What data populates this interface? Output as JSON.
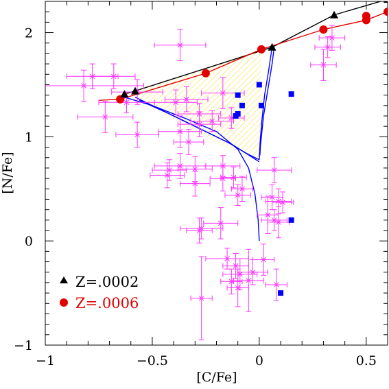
{
  "chart_data": {
    "type": "scatter",
    "xlabel": "[C/Fe]",
    "ylabel": "[N/Fe]",
    "xlim": [
      -1.0,
      0.6
    ],
    "ylim": [
      -1.0,
      2.3
    ],
    "x_ticks": [
      "−1",
      "−0.5",
      "0",
      "0.5"
    ],
    "x_tick_values": [
      -1.0,
      -0.5,
      0.0,
      0.5
    ],
    "y_ticks": [
      "−1",
      "0",
      "1",
      "2"
    ],
    "y_tick_values": [
      -1,
      0,
      1,
      2
    ],
    "grid": false,
    "legend_position": "bottom-left",
    "colors": {
      "z0002": "#000000",
      "z0006": "#e00000",
      "blue": "#0000ff",
      "data": "#ff33ff",
      "hatch": "#ffee44"
    },
    "series": [
      {
        "name": "Z=.0002",
        "marker": "triangle",
        "color": "#000000",
        "x": [
          -0.63,
          -0.58,
          0.06,
          0.35,
          0.6
        ],
        "y": [
          1.41,
          1.44,
          1.86,
          2.17,
          2.32
        ]
      },
      {
        "name": "Z=.0006",
        "marker": "circle",
        "color": "#e00000",
        "x": [
          -0.65,
          -0.25,
          0.01,
          0.3,
          0.5,
          0.5,
          0.6
        ],
        "y": [
          1.36,
          1.61,
          1.84,
          2.03,
          2.12,
          2.16,
          2.2
        ]
      },
      {
        "marker": "square",
        "color": "#0000ff",
        "x": [
          0.0,
          0.01,
          -0.1,
          -0.11,
          -0.08,
          -0.1,
          0.15,
          0.15,
          0.1
        ],
        "y": [
          1.5,
          1.3,
          1.4,
          1.2,
          1.3,
          1.22,
          1.41,
          0.2,
          -0.5
        ]
      },
      {
        "marker": "asterisk",
        "color": "#ff33ff",
        "points": [
          {
            "x": -0.82,
            "y": 1.49,
            "xerr": 0.28,
            "yerr": 0.15
          },
          {
            "x": -0.78,
            "y": 1.58,
            "xerr": 0.12,
            "yerr": 0.12
          },
          {
            "x": -0.72,
            "y": 1.19,
            "xerr": 0.13,
            "yerr": 0.15
          },
          {
            "x": -0.68,
            "y": 1.58,
            "xerr": 0.1,
            "yerr": 0.12
          },
          {
            "x": -0.62,
            "y": 1.33,
            "xerr": 0.13,
            "yerr": 0.1
          },
          {
            "x": -0.57,
            "y": 1.43,
            "xerr": 0.12,
            "yerr": 0.12
          },
          {
            "x": -0.57,
            "y": 1.02,
            "xerr": 0.1,
            "yerr": 0.12
          },
          {
            "x": -0.37,
            "y": 1.88,
            "xerr": 0.12,
            "yerr": 0.15
          },
          {
            "x": -0.39,
            "y": 1.33,
            "xerr": 0.1,
            "yerr": 0.12
          },
          {
            "x": -0.37,
            "y": 1.05,
            "xerr": 0.1,
            "yerr": 0.15
          },
          {
            "x": -0.34,
            "y": 1.36,
            "xerr": 0.1,
            "yerr": 0.12
          },
          {
            "x": -0.28,
            "y": 1.12,
            "xerr": 0.1,
            "yerr": 0.12
          },
          {
            "x": -0.33,
            "y": 0.95,
            "xerr": 0.07,
            "yerr": 0.12
          },
          {
            "x": -0.3,
            "y": 0.69,
            "xerr": 0.08,
            "yerr": 0.12
          },
          {
            "x": -0.37,
            "y": 0.72,
            "xerr": 0.12,
            "yerr": 0.12
          },
          {
            "x": -0.42,
            "y": 0.68,
            "xerr": 0.08,
            "yerr": 0.1
          },
          {
            "x": -0.43,
            "y": 0.63,
            "xerr": 0.08,
            "yerr": 0.12
          },
          {
            "x": -0.28,
            "y": 1.22,
            "xerr": 0.1,
            "yerr": 0.1
          },
          {
            "x": -0.22,
            "y": 1.15,
            "xerr": 0.1,
            "yerr": 0.1
          },
          {
            "x": -0.3,
            "y": 0.55,
            "xerr": 0.07,
            "yerr": 0.12
          },
          {
            "x": -0.27,
            "y": 0.12,
            "xerr": 0.1,
            "yerr": 0.1
          },
          {
            "x": -0.28,
            "y": 0.1,
            "xerr": 0.06,
            "yerr": 0.12
          },
          {
            "x": -0.17,
            "y": 1.42,
            "xerr": 0.1,
            "yerr": 0.15
          },
          {
            "x": -0.13,
            "y": 1.18,
            "xerr": 0.06,
            "yerr": 0.1
          },
          {
            "x": -0.17,
            "y": 0.72,
            "xerr": 0.08,
            "yerr": 0.1
          },
          {
            "x": -0.17,
            "y": 0.6,
            "xerr": 0.06,
            "yerr": 0.12
          },
          {
            "x": -0.12,
            "y": 0.61,
            "xerr": 0.06,
            "yerr": 0.1
          },
          {
            "x": -0.1,
            "y": 0.44,
            "xerr": 0.06,
            "yerr": 0.1
          },
          {
            "x": -0.08,
            "y": 0.5,
            "xerr": 0.05,
            "yerr": 0.12
          },
          {
            "x": -0.18,
            "y": 0.17,
            "xerr": 0.08,
            "yerr": 0.15
          },
          {
            "x": -0.27,
            "y": -0.55,
            "xerr": 0.05,
            "yerr": 0.4
          },
          {
            "x": -0.15,
            "y": -0.17,
            "xerr": 0.1,
            "yerr": 0.1
          },
          {
            "x": -0.11,
            "y": -0.24,
            "xerr": 0.06,
            "yerr": 0.12
          },
          {
            "x": -0.09,
            "y": -0.32,
            "xerr": 0.08,
            "yerr": 0.15
          },
          {
            "x": -0.13,
            "y": -0.39,
            "xerr": 0.05,
            "yerr": 0.12
          },
          {
            "x": -0.1,
            "y": -0.45,
            "xerr": 0.05,
            "yerr": 0.18
          },
          {
            "x": -0.05,
            "y": -0.38,
            "xerr": 0.07,
            "yerr": 0.3
          },
          {
            "x": -0.03,
            "y": -0.3,
            "xerr": 0.07,
            "yerr": 0.12
          },
          {
            "x": 0.02,
            "y": -0.18,
            "xerr": 0.05,
            "yerr": 0.15
          },
          {
            "x": 0.04,
            "y": 0.25,
            "xerr": 0.05,
            "yerr": 0.18
          },
          {
            "x": 0.07,
            "y": 0.68,
            "xerr": 0.08,
            "yerr": 0.12
          },
          {
            "x": 0.06,
            "y": 0.42,
            "xerr": 0.05,
            "yerr": 0.12
          },
          {
            "x": 0.09,
            "y": 0.38,
            "xerr": 0.06,
            "yerr": 0.12
          },
          {
            "x": 0.11,
            "y": 0.37,
            "xerr": 0.05,
            "yerr": 0.1
          },
          {
            "x": 0.09,
            "y": 0.18,
            "xerr": 0.05,
            "yerr": 0.15
          },
          {
            "x": 0.07,
            "y": 0.2,
            "xerr": 0.06,
            "yerr": 0.1
          },
          {
            "x": 0.08,
            "y": -0.42,
            "xerr": 0.05,
            "yerr": 0.15
          },
          {
            "x": 0.3,
            "y": 1.69,
            "xerr": 0.06,
            "yerr": 0.15
          },
          {
            "x": 0.34,
            "y": 1.95,
            "xerr": 0.06,
            "yerr": 0.12
          },
          {
            "x": 0.32,
            "y": 1.86,
            "xerr": 0.06,
            "yerr": 0.1
          }
        ]
      }
    ],
    "lines": [
      {
        "name": "z0002-track",
        "color": "#000000",
        "x": [
          -0.63,
          -0.58,
          0.06,
          0.35,
          0.6
        ],
        "y": [
          1.41,
          1.44,
          1.86,
          2.17,
          2.32
        ]
      },
      {
        "name": "z0006-track",
        "color": "#e00000",
        "x": [
          -0.75,
          -0.65,
          -0.25,
          0.01,
          0.3,
          0.5,
          0.6
        ],
        "y": [
          1.35,
          1.36,
          1.61,
          1.84,
          2.03,
          2.12,
          2.2
        ]
      },
      {
        "name": "blue-track-1",
        "color": "#0000ff",
        "x": [
          -0.63,
          -0.5,
          -0.35,
          -0.2,
          -0.1,
          -0.05,
          -0.02,
          -0.005,
          0.0
        ],
        "y": [
          1.38,
          1.3,
          1.18,
          1.05,
          0.88,
          0.7,
          0.45,
          0.2,
          0.0
        ]
      },
      {
        "name": "blue-track-2",
        "color": "#0000ff",
        "x": [
          -0.58,
          -0.45,
          -0.3,
          -0.15,
          -0.05,
          0.0
        ],
        "y": [
          1.38,
          1.25,
          1.1,
          0.95,
          0.83,
          0.78
        ]
      },
      {
        "name": "blue-track-3",
        "color": "#0000ff",
        "x": [
          -0.56,
          -0.42,
          -0.28,
          -0.13,
          -0.03,
          0.0
        ],
        "y": [
          1.35,
          1.22,
          1.08,
          0.93,
          0.8,
          0.76
        ]
      },
      {
        "name": "blue-track-4",
        "color": "#0000ff",
        "x": [
          0.07,
          0.06,
          0.04,
          0.02,
          0.01,
          0.005,
          0.003
        ],
        "y": [
          1.86,
          1.7,
          1.45,
          1.2,
          1.0,
          0.9,
          0.82
        ]
      },
      {
        "name": "blue-track-5",
        "color": "#0000ff",
        "x": [
          0.06,
          0.045,
          0.025,
          0.012,
          0.004,
          0.0
        ],
        "y": [
          1.86,
          1.65,
          1.4,
          1.15,
          0.95,
          0.78
        ]
      }
    ],
    "hatched_region": {
      "color": "#ffee44",
      "x": [
        -0.63,
        0.01,
        0.01,
        -0.1,
        -0.3,
        -0.58
      ],
      "y": [
        1.41,
        1.84,
        0.75,
        0.85,
        1.05,
        1.38
      ]
    },
    "legend": [
      {
        "label": "Z=.0002",
        "marker": "triangle",
        "color": "#000000"
      },
      {
        "label": "Z=.0006",
        "marker": "circle",
        "color": "#e00000"
      }
    ]
  }
}
